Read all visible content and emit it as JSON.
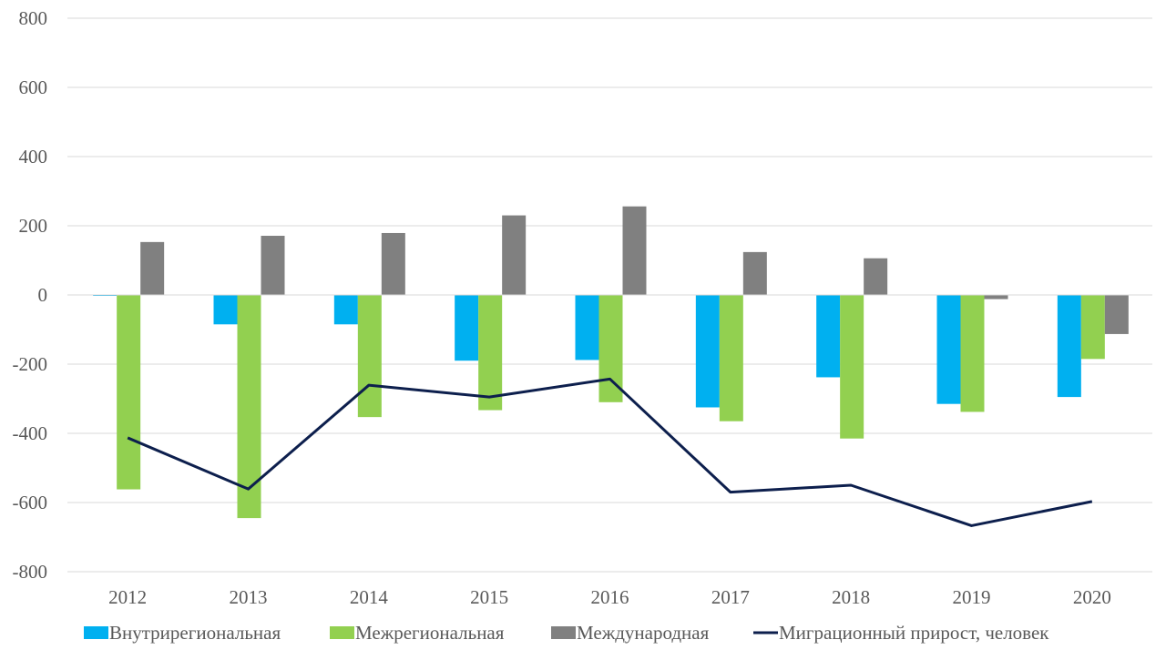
{
  "chart_data": {
    "type": "bar",
    "categories": [
      "2012",
      "2013",
      "2014",
      "2015",
      "2016",
      "2017",
      "2018",
      "2019",
      "2020"
    ],
    "series": [
      {
        "name": "Внутрирегиональная",
        "type": "bar",
        "color": "#00B0F0",
        "values": [
          -2,
          -85,
          -85,
          -190,
          -188,
          -325,
          -238,
          -315,
          -295
        ]
      },
      {
        "name": "Межрегиональная",
        "type": "bar",
        "color": "#92D050",
        "values": [
          -562,
          -645,
          -353,
          -333,
          -310,
          -365,
          -415,
          -338,
          -185
        ]
      },
      {
        "name": "Международная",
        "type": "bar",
        "color": "#808080",
        "values": [
          153,
          171,
          179,
          230,
          256,
          124,
          106,
          -12,
          -113
        ]
      },
      {
        "name": "Миграционный прирост, человек",
        "type": "line",
        "color": "#0D1F4D",
        "values": [
          -413,
          -561,
          -261,
          -295,
          -243,
          -570,
          -550,
          -667,
          -597
        ]
      }
    ],
    "ylim": [
      -800,
      800
    ],
    "yticks": [
      "-800",
      "-600",
      "-400",
      "-200",
      "0",
      "200",
      "400",
      "600",
      "800"
    ],
    "grid": true,
    "legend_position": "bottom",
    "title": "",
    "xlabel": "",
    "ylabel": ""
  }
}
